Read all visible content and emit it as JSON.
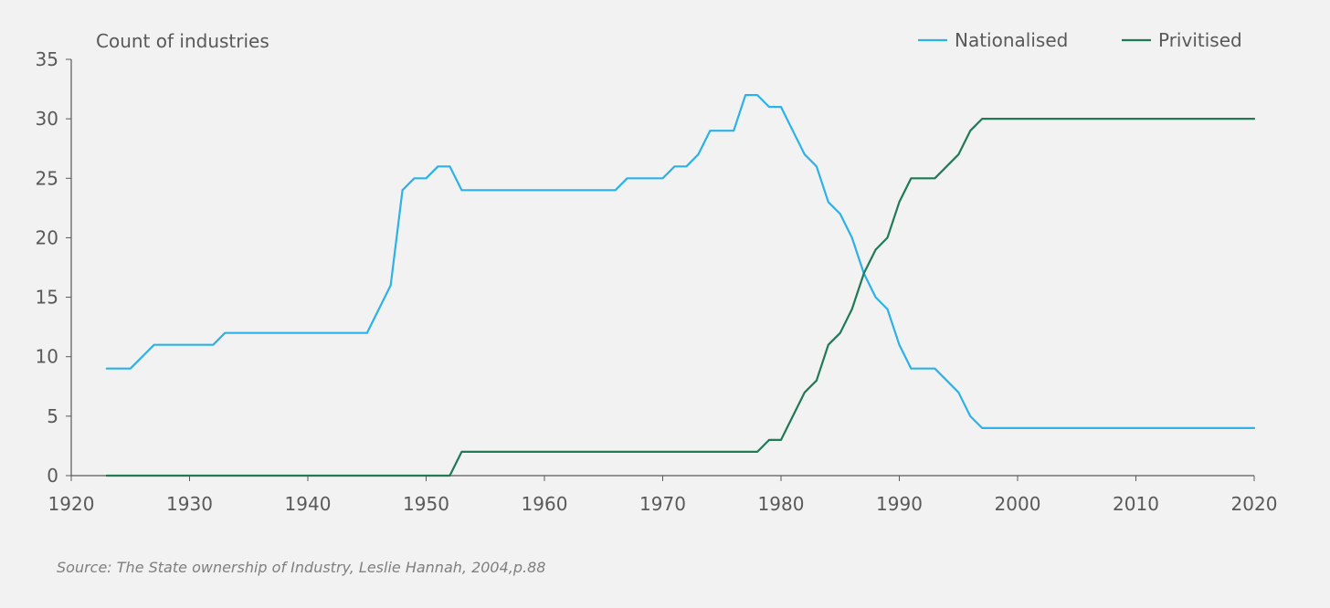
{
  "chart_data": {
    "type": "line",
    "title": "",
    "ylabel": "Count of industries",
    "xlabel": "",
    "xlim": [
      1920,
      2020
    ],
    "ylim": [
      0,
      35
    ],
    "x_ticks": [
      1920,
      1930,
      1940,
      1950,
      1960,
      1970,
      1980,
      1990,
      2000,
      2010,
      2020
    ],
    "y_ticks": [
      0,
      5,
      10,
      15,
      20,
      25,
      30,
      35
    ],
    "grid": false,
    "legend_position": "top-right",
    "series": [
      {
        "name": "Nationalised",
        "color": "#2cb1e8",
        "x": [
          1923,
          1925,
          1927,
          1928,
          1932,
          1933,
          1945,
          1947,
          1948,
          1949,
          1950,
          1951,
          1952,
          1953,
          1966,
          1967,
          1970,
          1971,
          1972,
          1973,
          1974,
          1976,
          1977,
          1978,
          1979,
          1980,
          1981,
          1982,
          1983,
          1984,
          1985,
          1986,
          1987,
          1988,
          1989,
          1990,
          1991,
          1993,
          1995,
          1996,
          1997,
          2020
        ],
        "y": [
          9,
          9,
          11,
          11,
          11,
          12,
          12,
          16,
          24,
          25,
          25,
          26,
          26,
          24,
          24,
          25,
          25,
          26,
          26,
          27,
          29,
          29,
          32,
          32,
          31,
          31,
          29,
          27,
          26,
          23,
          22,
          20,
          17,
          15,
          14,
          11,
          9,
          9,
          7,
          5,
          4,
          4
        ]
      },
      {
        "name": "Privitised",
        "color": "#1f7a55",
        "x": [
          1923,
          1952,
          1953,
          1978,
          1979,
          1980,
          1981,
          1982,
          1983,
          1984,
          1985,
          1986,
          1987,
          1988,
          1989,
          1990,
          1991,
          1993,
          1995,
          1996,
          1997,
          2020
        ],
        "y": [
          0,
          0,
          2,
          2,
          3,
          3,
          5,
          7,
          8,
          11,
          12,
          14,
          17,
          19,
          20,
          23,
          25,
          25,
          27,
          29,
          30,
          30
        ]
      }
    ]
  },
  "source_note": "Source: The State ownership of Industry, Leslie Hannah, 2004,p.88"
}
